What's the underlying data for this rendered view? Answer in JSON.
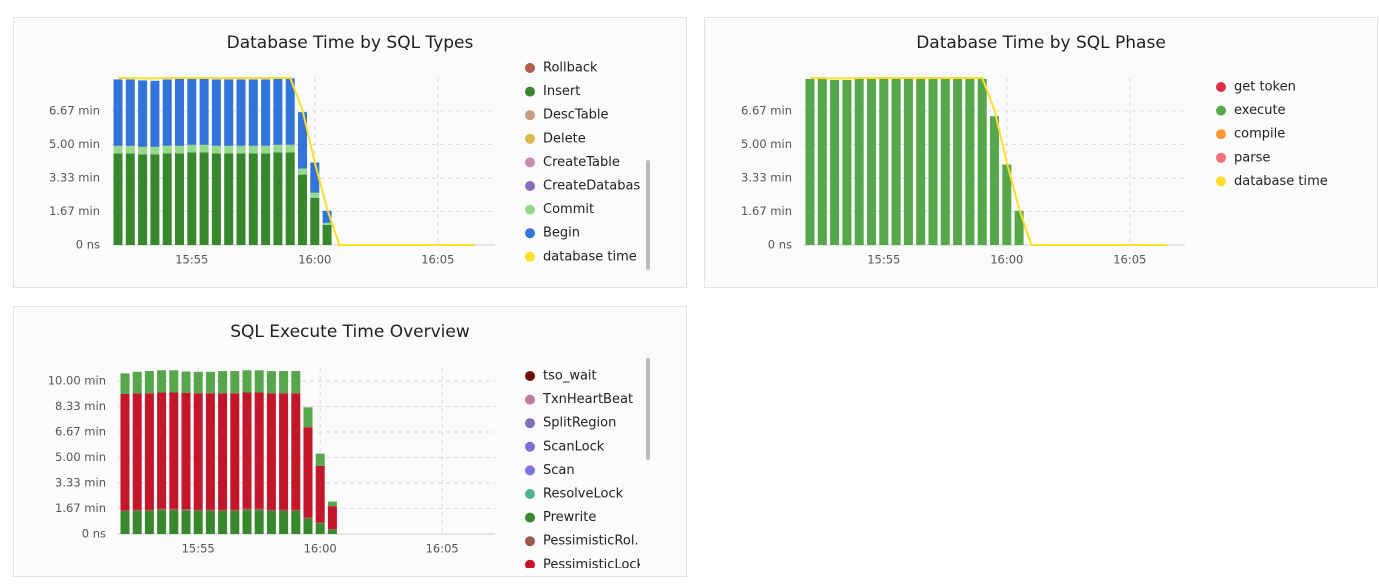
{
  "chart_data": [
    {
      "type": "bar",
      "title": "Database Time by SQL Types",
      "stacked": true,
      "grid": true,
      "categories": [
        null,
        null,
        null,
        null,
        null,
        null,
        "15:55",
        null,
        null,
        null,
        null,
        null,
        null,
        null,
        null,
        null,
        "16:00",
        null,
        null,
        null,
        null,
        null,
        null,
        null,
        null,
        null,
        "16:05",
        null,
        null,
        null
      ],
      "ylim": [
        0,
        8.3
      ],
      "yticks": [
        {
          "value": 0,
          "label": "0 ns"
        },
        {
          "value": 1.67,
          "label": "1.67 min"
        },
        {
          "value": 3.33,
          "label": "3.33 min"
        },
        {
          "value": 5,
          "label": "5.00 min"
        },
        {
          "value": 6.67,
          "label": "6.67 min"
        }
      ],
      "series": [
        {
          "name": "Rollback",
          "color": "#b15b4c",
          "values": [
            0,
            0,
            0,
            0,
            0,
            0,
            0,
            0,
            0,
            0,
            0,
            0,
            0,
            0,
            0,
            0,
            0,
            0,
            null,
            null,
            null,
            null,
            null,
            null,
            null,
            null,
            null,
            null,
            null,
            null
          ]
        },
        {
          "name": "Insert",
          "color": "#37872d",
          "values": [
            4.55,
            4.55,
            4.5,
            4.5,
            4.55,
            4.55,
            4.6,
            4.6,
            4.55,
            4.55,
            4.55,
            4.55,
            4.55,
            4.6,
            4.6,
            3.5,
            2.35,
            1.0,
            null,
            null,
            null,
            null,
            null,
            null,
            null,
            null,
            null,
            null,
            null,
            null
          ]
        },
        {
          "name": "DescTable",
          "color": "#c49c80",
          "values": [
            0,
            0,
            0,
            0,
            0,
            0,
            0,
            0,
            0,
            0,
            0,
            0,
            0,
            0,
            0,
            0,
            0,
            0,
            null,
            null,
            null,
            null,
            null,
            null,
            null,
            null,
            null,
            null,
            null,
            null
          ]
        },
        {
          "name": "Delete",
          "color": "#dcb84f",
          "values": [
            0,
            0,
            0,
            0,
            0,
            0,
            0,
            0,
            0,
            0,
            0,
            0,
            0,
            0,
            0,
            0,
            0,
            0,
            null,
            null,
            null,
            null,
            null,
            null,
            null,
            null,
            null,
            null,
            null,
            null
          ]
        },
        {
          "name": "CreateTable",
          "color": "#c88bb0",
          "values": [
            0,
            0,
            0,
            0,
            0,
            0,
            0,
            0,
            0,
            0,
            0,
            0,
            0,
            0,
            0,
            0,
            0,
            0,
            null,
            null,
            null,
            null,
            null,
            null,
            null,
            null,
            null,
            null,
            null,
            null
          ]
        },
        {
          "name": "CreateDatabase",
          "color": "#8a6bbe",
          "values": [
            0,
            0,
            0,
            0,
            0,
            0,
            0,
            0,
            0,
            0,
            0,
            0,
            0,
            0,
            0,
            0,
            0,
            0,
            null,
            null,
            null,
            null,
            null,
            null,
            null,
            null,
            null,
            null,
            null,
            null
          ]
        },
        {
          "name": "Commit",
          "color": "#96d98d",
          "values": [
            0.38,
            0.38,
            0.38,
            0.38,
            0.38,
            0.38,
            0.38,
            0.38,
            0.38,
            0.38,
            0.38,
            0.38,
            0.38,
            0.38,
            0.38,
            0.3,
            0.25,
            0.1,
            null,
            null,
            null,
            null,
            null,
            null,
            null,
            null,
            null,
            null,
            null,
            null
          ]
        },
        {
          "name": "Begin",
          "color": "#3274d9",
          "values": [
            3.3,
            3.3,
            3.3,
            3.28,
            3.3,
            3.32,
            3.3,
            3.3,
            3.3,
            3.3,
            3.3,
            3.3,
            3.3,
            3.3,
            3.3,
            2.8,
            1.5,
            0.6,
            null,
            null,
            null,
            null,
            null,
            null,
            null,
            null,
            null,
            null,
            null,
            null
          ]
        },
        {
          "name": "database time",
          "color": "#fade2a",
          "type": "line",
          "values": [
            8.3,
            8.3,
            8.28,
            8.28,
            8.3,
            8.3,
            8.3,
            8.3,
            8.3,
            8.3,
            8.3,
            8.3,
            8.3,
            8.3,
            8.3,
            6.7,
            4.1,
            1.8,
            0,
            0,
            0,
            0,
            0,
            0,
            0,
            0,
            0,
            0,
            0,
            0
          ]
        }
      ]
    },
    {
      "type": "bar",
      "title": "Database Time by SQL Phase",
      "stacked": true,
      "grid": true,
      "categories": [
        null,
        null,
        null,
        null,
        null,
        null,
        "15:55",
        null,
        null,
        null,
        null,
        null,
        null,
        null,
        null,
        null,
        "16:00",
        null,
        null,
        null,
        null,
        null,
        null,
        null,
        null,
        null,
        "16:05",
        null,
        null,
        null
      ],
      "ylim": [
        0,
        8.3
      ],
      "yticks": [
        {
          "value": 0,
          "label": "0 ns"
        },
        {
          "value": 1.67,
          "label": "1.67 min"
        },
        {
          "value": 3.33,
          "label": "3.33 min"
        },
        {
          "value": 5,
          "label": "5.00 min"
        },
        {
          "value": 6.67,
          "label": "6.67 min"
        }
      ],
      "series": [
        {
          "name": "get token",
          "color": "#e02f44",
          "values": [
            0,
            0,
            0,
            0,
            0,
            0,
            0,
            0,
            0,
            0,
            0,
            0,
            0,
            0,
            0,
            0,
            0,
            0,
            null,
            null,
            null,
            null,
            null,
            null,
            null,
            null,
            null,
            null,
            null,
            null
          ]
        },
        {
          "name": "execute",
          "color": "#56a64b",
          "values": [
            8.25,
            8.25,
            8.2,
            8.2,
            8.25,
            8.25,
            8.25,
            8.3,
            8.3,
            8.25,
            8.25,
            8.25,
            8.25,
            8.25,
            8.25,
            6.4,
            4.0,
            1.7,
            null,
            null,
            null,
            null,
            null,
            null,
            null,
            null,
            null,
            null,
            null,
            null
          ]
        },
        {
          "name": "compile",
          "color": "#ff9830",
          "values": [
            0,
            0,
            0,
            0,
            0,
            0,
            0,
            0,
            0,
            0,
            0,
            0,
            0,
            0,
            0,
            0,
            0,
            0,
            null,
            null,
            null,
            null,
            null,
            null,
            null,
            null,
            null,
            null,
            null,
            null
          ]
        },
        {
          "name": "parse",
          "color": "#f2707e",
          "values": [
            0,
            0,
            0,
            0,
            0,
            0,
            0,
            0,
            0,
            0,
            0,
            0,
            0,
            0,
            0,
            0,
            0,
            0,
            null,
            null,
            null,
            null,
            null,
            null,
            null,
            null,
            null,
            null,
            null,
            null
          ]
        },
        {
          "name": "database time",
          "color": "#fade2a",
          "type": "line",
          "values": [
            8.3,
            8.3,
            8.28,
            8.28,
            8.3,
            8.3,
            8.3,
            8.3,
            8.3,
            8.3,
            8.3,
            8.3,
            8.3,
            8.3,
            8.3,
            6.7,
            4.1,
            1.8,
            0,
            0,
            0,
            0,
            0,
            0,
            0,
            0,
            0,
            0,
            0,
            0
          ]
        }
      ]
    },
    {
      "type": "bar",
      "title": "SQL Execute Time Overview",
      "stacked": true,
      "grid": true,
      "categories": [
        null,
        null,
        null,
        null,
        null,
        null,
        "15:55",
        null,
        null,
        null,
        null,
        null,
        null,
        null,
        null,
        null,
        "16:00",
        null,
        null,
        null,
        null,
        null,
        null,
        null,
        null,
        null,
        "16:05",
        null,
        null,
        null
      ],
      "ylim": [
        0,
        10.85
      ],
      "yticks": [
        {
          "value": 0,
          "label": "0 ns"
        },
        {
          "value": 1.67,
          "label": "1.67 min"
        },
        {
          "value": 3.33,
          "label": "3.33 min"
        },
        {
          "value": 5,
          "label": "5.00 min"
        },
        {
          "value": 6.67,
          "label": "6.67 min"
        },
        {
          "value": 8.33,
          "label": "8.33 min"
        },
        {
          "value": 10,
          "label": "10.00 min"
        }
      ],
      "series": [
        {
          "name": "tso_wait",
          "color": "#6e0a0a",
          "values": [
            0,
            0,
            0,
            0,
            0,
            0,
            0,
            0,
            0,
            0,
            0,
            0,
            0,
            0,
            0,
            0,
            0,
            0,
            null,
            null,
            null,
            null,
            null,
            null,
            null,
            null,
            null,
            null,
            null,
            null
          ]
        },
        {
          "name": "TxnHeartBeat",
          "color": "#c27ba0",
          "values": [
            0,
            0,
            0,
            0,
            0,
            0,
            0,
            0,
            0,
            0,
            0,
            0,
            0,
            0,
            0,
            0,
            0,
            0,
            null,
            null,
            null,
            null,
            null,
            null,
            null,
            null,
            null,
            null,
            null,
            null
          ]
        },
        {
          "name": "SplitRegion",
          "color": "#806eb7",
          "values": [
            0,
            0,
            0,
            0,
            0,
            0,
            0,
            0,
            0,
            0,
            0,
            0,
            0,
            0,
            0,
            0,
            0,
            0,
            null,
            null,
            null,
            null,
            null,
            null,
            null,
            null,
            null,
            null,
            null,
            null
          ]
        },
        {
          "name": "ScanLock",
          "color": "#7c6fd8",
          "values": [
            0,
            0,
            0,
            0,
            0,
            0,
            0,
            0,
            0,
            0,
            0,
            0,
            0,
            0,
            0,
            0,
            0,
            0,
            null,
            null,
            null,
            null,
            null,
            null,
            null,
            null,
            null,
            null,
            null,
            null
          ]
        },
        {
          "name": "Scan",
          "color": "#7b74de",
          "values": [
            0,
            0,
            0,
            0,
            0,
            0,
            0,
            0,
            0,
            0,
            0,
            0,
            0,
            0,
            0,
            0,
            0,
            0,
            null,
            null,
            null,
            null,
            null,
            null,
            null,
            null,
            null,
            null,
            null,
            null
          ]
        },
        {
          "name": "ResolveLock",
          "color": "#4fb48c",
          "values": [
            0,
            0,
            0,
            0,
            0,
            0,
            0,
            0,
            0,
            0,
            0,
            0,
            0,
            0,
            0,
            0,
            0,
            0,
            null,
            null,
            null,
            null,
            null,
            null,
            null,
            null,
            null,
            null,
            null,
            null
          ]
        },
        {
          "name": "Prewrite",
          "color": "#37872d",
          "values": [
            1.47,
            1.5,
            1.5,
            1.55,
            1.55,
            1.52,
            1.5,
            1.5,
            1.5,
            1.5,
            1.55,
            1.55,
            1.5,
            1.5,
            1.5,
            1.0,
            0.7,
            0.3,
            null,
            null,
            null,
            null,
            null,
            null,
            null,
            null,
            null,
            null,
            null,
            null
          ]
        },
        {
          "name": "PessimisticRol...",
          "color": "#99594b",
          "values": [
            0.1,
            0.1,
            0.1,
            0.1,
            0.1,
            0.1,
            0.1,
            0.1,
            0.1,
            0.1,
            0.1,
            0.1,
            0.1,
            0.1,
            0.1,
            0.08,
            0.05,
            0.02,
            null,
            null,
            null,
            null,
            null,
            null,
            null,
            null,
            null,
            null,
            null,
            null
          ]
        },
        {
          "name": "PessimisticLock",
          "color": "#c4162a",
          "values": [
            7.58,
            7.6,
            7.6,
            7.6,
            7.6,
            7.6,
            7.6,
            7.6,
            7.6,
            7.6,
            7.6,
            7.6,
            7.6,
            7.6,
            7.6,
            5.9,
            3.7,
            1.5,
            null,
            null,
            null,
            null,
            null,
            null,
            null,
            null,
            null,
            null,
            null,
            null
          ]
        },
        {
          "name": null,
          "color": "#56a64b",
          "values": [
            1.35,
            1.4,
            1.45,
            1.45,
            1.45,
            1.4,
            1.4,
            1.4,
            1.45,
            1.45,
            1.45,
            1.45,
            1.45,
            1.45,
            1.45,
            1.3,
            0.8,
            0.3,
            null,
            null,
            null,
            null,
            null,
            null,
            null,
            null,
            null,
            null,
            null,
            null
          ]
        }
      ]
    }
  ]
}
